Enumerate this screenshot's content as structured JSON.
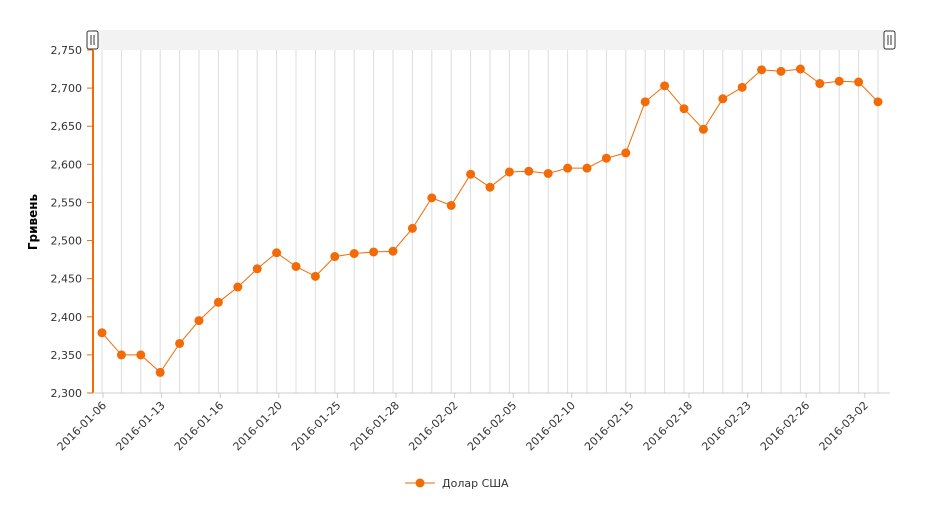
{
  "chart_data": {
    "type": "line",
    "ylabel": "Гривень",
    "ylim": [
      2.3,
      2.75
    ],
    "y_ticks": [
      "2,300",
      "2,350",
      "2,400",
      "2,450",
      "2,500",
      "2,550",
      "2,600",
      "2,650",
      "2,700",
      "2,750"
    ],
    "x_tick_labels": [
      "2016-01-06",
      "2016-01-13",
      "2016-01-16",
      "2016-01-20",
      "2016-01-25",
      "2016-01-28",
      "2016-02-02",
      "2016-02-05",
      "2016-02-10",
      "2016-02-15",
      "2016-02-18",
      "2016-02-23",
      "2016-02-26",
      "2016-03-02"
    ],
    "grid": "vertical",
    "legend_position": "bottom-center",
    "color": "#f26b06",
    "series": [
      {
        "name": "Долар США",
        "values": [
          2.379,
          2.35,
          2.35,
          2.327,
          2.365,
          2.395,
          2.419,
          2.439,
          2.463,
          2.484,
          2.466,
          2.453,
          2.479,
          2.483,
          2.485,
          2.486,
          2.516,
          2.556,
          2.546,
          2.587,
          2.57,
          2.59,
          2.591,
          2.588,
          2.595,
          2.595,
          2.608,
          2.615,
          2.682,
          2.703,
          2.673,
          2.646,
          2.686,
          2.701,
          2.724,
          2.722,
          2.725,
          2.706,
          2.709,
          2.708,
          2.682
        ]
      }
    ]
  }
}
